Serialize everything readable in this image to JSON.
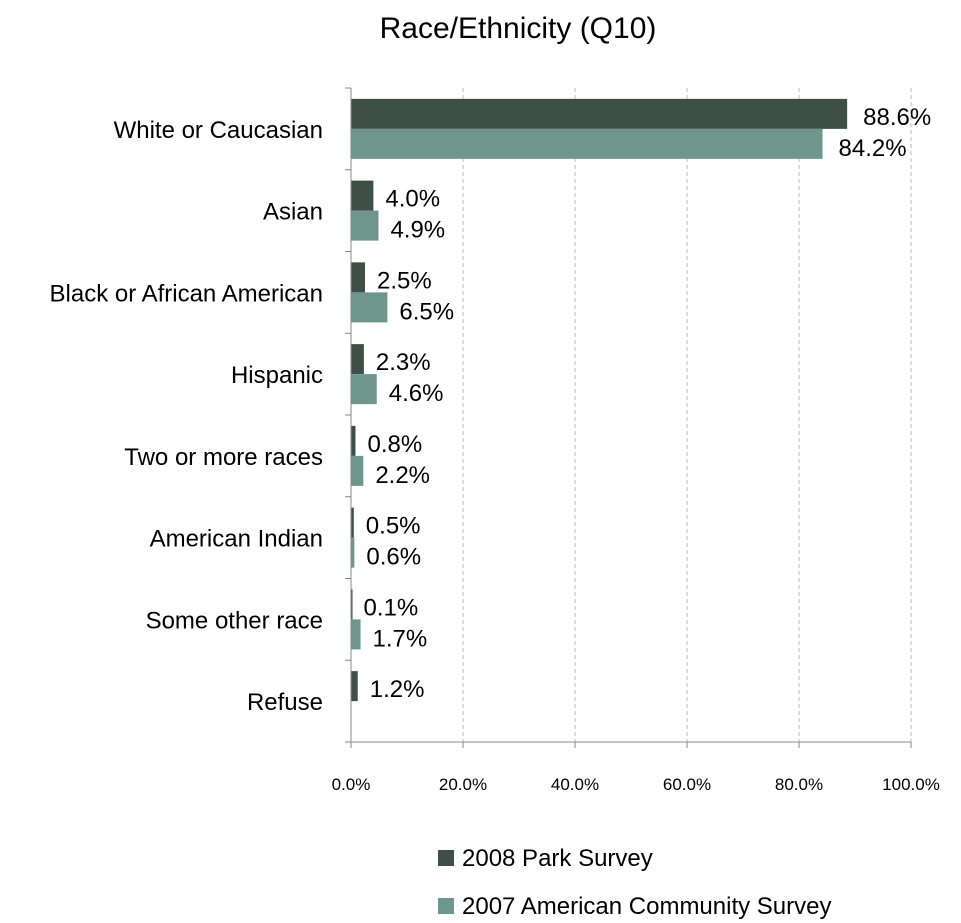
{
  "chart_data": {
    "type": "bar",
    "orientation": "horizontal",
    "title": "Race/Ethnicity (Q10)",
    "xlabel": "",
    "ylabel": "",
    "xlim": [
      0,
      100
    ],
    "x_ticks": [
      "0.0%",
      "20.0%",
      "40.0%",
      "60.0%",
      "80.0%",
      "100.0%"
    ],
    "grid": "vertical dashed",
    "legend_position": "bottom",
    "categories": [
      "White or Caucasian",
      "Asian",
      "Black or African American",
      "Hispanic",
      "Two or more races",
      "American Indian",
      "Some other race",
      "Refuse"
    ],
    "series": [
      {
        "name": "2008 Park Survey",
        "color": "#3d4f47",
        "values": [
          88.6,
          4.0,
          2.5,
          2.3,
          0.8,
          0.5,
          0.1,
          1.2
        ],
        "labels": [
          "88.6%",
          "4.0%",
          "2.5%",
          "2.3%",
          "0.8%",
          "0.5%",
          "0.1%",
          "1.2%"
        ]
      },
      {
        "name": "2007 American Community Survey",
        "color": "#6f968a",
        "values": [
          84.2,
          4.9,
          6.5,
          4.6,
          2.2,
          0.6,
          1.7,
          null
        ],
        "labels": [
          "84.2%",
          "4.9%",
          "6.5%",
          "4.6%",
          "2.2%",
          "0.6%",
          "1.7%",
          null
        ]
      }
    ]
  }
}
